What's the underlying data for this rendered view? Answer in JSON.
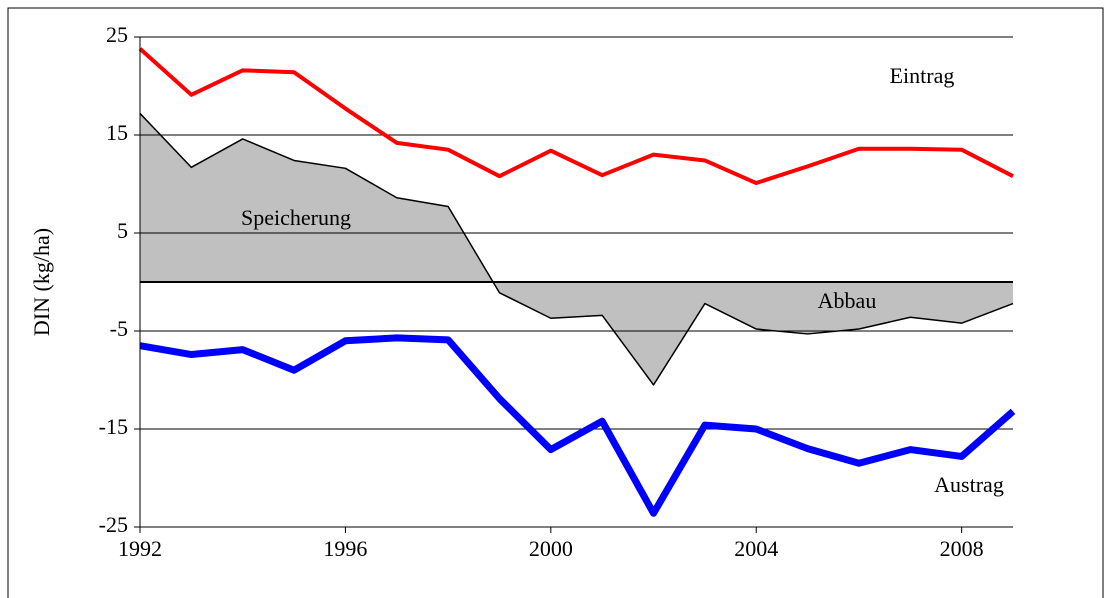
{
  "chart_data": {
    "type": "line",
    "y_label": "DIN  (kg/ha)",
    "x": [
      1992,
      1993,
      1994,
      1995,
      1996,
      1997,
      1998,
      1999,
      2000,
      2001,
      2002,
      2003,
      2004,
      2005,
      2006,
      2007,
      2008,
      2009
    ],
    "xlim": [
      1992,
      2009
    ],
    "xticks": [
      1992,
      1996,
      2000,
      2004,
      2008
    ],
    "ylim": [
      -25,
      25
    ],
    "yticks": [
      -25,
      -15,
      -5,
      5,
      15,
      25
    ],
    "grid": true,
    "series": [
      {
        "name": "Eintrag",
        "color": "#ff0000",
        "values": [
          23.8,
          19.1,
          21.6,
          21.4,
          17.7,
          14.2,
          13.5,
          10.8,
          13.4,
          10.9,
          13.0,
          12.4,
          10.1,
          11.8,
          13.6,
          13.6,
          13.5,
          10.8
        ]
      },
      {
        "name": "Austrag",
        "color": "#0000ff",
        "values": [
          -6.5,
          -7.4,
          -6.9,
          -9.0,
          -6.0,
          -5.7,
          -5.9,
          -11.9,
          -17.1,
          -14.2,
          -23.6,
          -14.6,
          -15.0,
          -17.0,
          -18.5,
          -17.1,
          -17.8,
          -13.2
        ]
      },
      {
        "name": "Speicherung",
        "color": "#c0c0c0",
        "values": [
          17.2,
          11.7,
          14.6,
          12.4,
          11.6,
          8.6,
          7.7,
          -1.1,
          -3.7,
          -3.4,
          -10.5,
          -2.2,
          -4.8,
          -5.3,
          -4.8,
          -3.6,
          -4.2,
          -2.2
        ]
      }
    ],
    "annotations": [
      "Abbau"
    ]
  }
}
